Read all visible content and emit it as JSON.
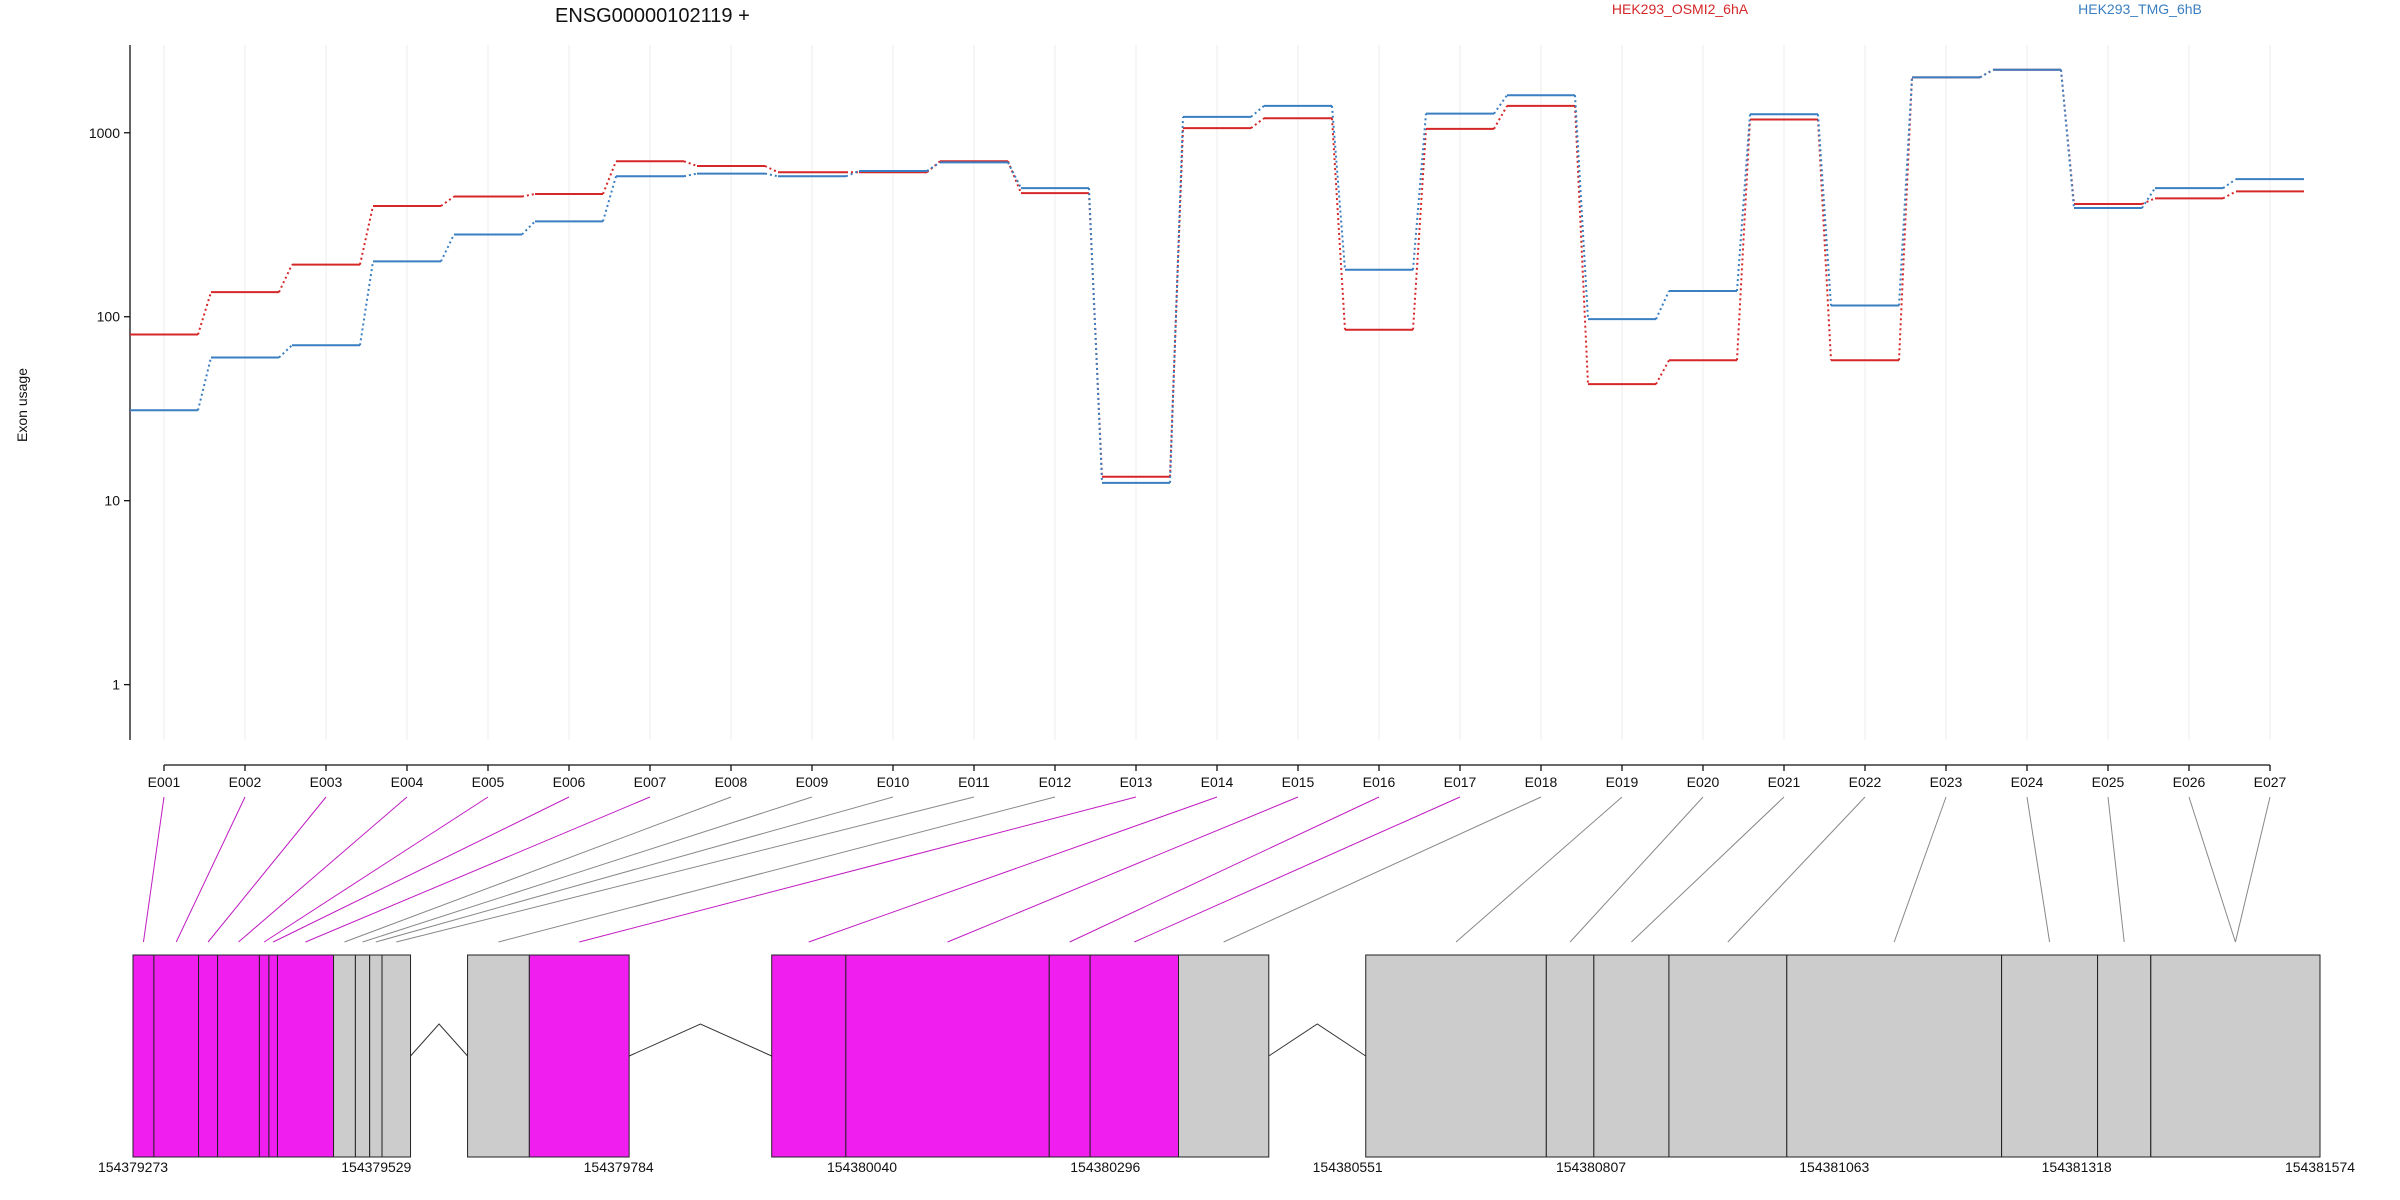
{
  "chart_data": {
    "type": "line",
    "title": "ENSG00000102119 +",
    "ylabel": "Exon usage",
    "xlabel": "",
    "yscale": "log",
    "ylim": [
      0.5,
      3000
    ],
    "yticks": [
      "1",
      "10",
      "100",
      "1000"
    ],
    "grid": "vertical-only",
    "legend_position": "top-right",
    "categories": [
      "E001",
      "E002",
      "E003",
      "E004",
      "E005",
      "E006",
      "E007",
      "E008",
      "E009",
      "E010",
      "E011",
      "E012",
      "E013",
      "E014",
      "E015",
      "E016",
      "E017",
      "E018",
      "E019",
      "E020",
      "E021",
      "E022",
      "E023",
      "E024",
      "E025",
      "E026",
      "E027"
    ],
    "series": [
      {
        "name": "HEK293_OSMI2_6hA",
        "color": "#d62728",
        "values": [
          80,
          136,
          192,
          400,
          450,
          465,
          700,
          660,
          610,
          610,
          700,
          470,
          13.5,
          1060,
          1200,
          85,
          1050,
          1400,
          43,
          58,
          1180,
          58,
          2000,
          2200,
          410,
          440,
          480
        ]
      },
      {
        "name": "HEK293_TMG_6hB",
        "color": "#3a7fc1",
        "values": [
          31,
          60,
          70,
          200,
          280,
          330,
          580,
          600,
          580,
          620,
          690,
          500,
          12.5,
          1220,
          1400,
          180,
          1270,
          1600,
          97,
          138,
          1260,
          115,
          2000,
          2200,
          390,
          500,
          560
        ]
      }
    ],
    "genome_axis": {
      "tick_labels": [
        "154379273",
        "154379529",
        "154379784",
        "154380040",
        "154380296",
        "154380551",
        "154380807",
        "154381063",
        "154381318",
        "154381574"
      ],
      "range": [
        154379273,
        154381574
      ]
    },
    "exons": [
      {
        "id": "E001",
        "start": 154379273,
        "end": 154379295,
        "highlight": true
      },
      {
        "id": "E002",
        "start": 154379295,
        "end": 154379342,
        "highlight": true
      },
      {
        "id": "E003",
        "start": 154379342,
        "end": 154379362,
        "highlight": true
      },
      {
        "id": "E004",
        "start": 154379362,
        "end": 154379406,
        "highlight": true
      },
      {
        "id": "E005",
        "start": 154379406,
        "end": 154379416,
        "highlight": true
      },
      {
        "id": "E006",
        "start": 154379416,
        "end": 154379425,
        "highlight": true
      },
      {
        "id": "E007",
        "start": 154379425,
        "end": 154379484,
        "highlight": true
      },
      {
        "id": "E008",
        "start": 154379484,
        "end": 154379507,
        "highlight": false
      },
      {
        "id": "E009",
        "start": 154379507,
        "end": 154379522,
        "highlight": false
      },
      {
        "id": "E010",
        "start": 154379522,
        "end": 154379535,
        "highlight": false
      },
      {
        "id": "E011",
        "start": 154379535,
        "end": 154379565,
        "highlight": false
      },
      {
        "id": "E012",
        "start": 154379625,
        "end": 154379690,
        "highlight": false
      },
      {
        "id": "E013",
        "start": 154379690,
        "end": 154379795,
        "highlight": true
      },
      {
        "id": "E014",
        "start": 154379945,
        "end": 154380023,
        "highlight": true
      },
      {
        "id": "E015",
        "start": 154380023,
        "end": 154380237,
        "highlight": true
      },
      {
        "id": "E016",
        "start": 154380237,
        "end": 154380280,
        "highlight": true
      },
      {
        "id": "E017",
        "start": 154380280,
        "end": 154380373,
        "highlight": true
      },
      {
        "id": "E018",
        "start": 154380373,
        "end": 154380468,
        "highlight": false
      },
      {
        "id": "E019",
        "start": 154380570,
        "end": 154380760,
        "highlight": false
      },
      {
        "id": "E020",
        "start": 154380760,
        "end": 154380810,
        "highlight": false
      },
      {
        "id": "E021",
        "start": 154380810,
        "end": 154380889,
        "highlight": false
      },
      {
        "id": "E022",
        "start": 154380889,
        "end": 154381013,
        "highlight": false
      },
      {
        "id": "E023",
        "start": 154381013,
        "end": 154381239,
        "highlight": false
      },
      {
        "id": "E024",
        "start": 154381239,
        "end": 154381340,
        "highlight": false
      },
      {
        "id": "E025",
        "start": 154381340,
        "end": 154381396,
        "highlight": false
      },
      {
        "id": "E026",
        "start": 154381396,
        "end": 154381574,
        "highlight": false
      },
      {
        "id": "E027",
        "start": 154381396,
        "end": 154381574,
        "highlight": false
      }
    ],
    "introns": [
      {
        "start": 154379565,
        "end": 154379625
      },
      {
        "start": 154379795,
        "end": 154379945
      },
      {
        "start": 154380468,
        "end": 154380570
      }
    ],
    "colors": {
      "highlight": "#f01ff0",
      "exon": "#cccccc",
      "outline": "#666666"
    }
  }
}
